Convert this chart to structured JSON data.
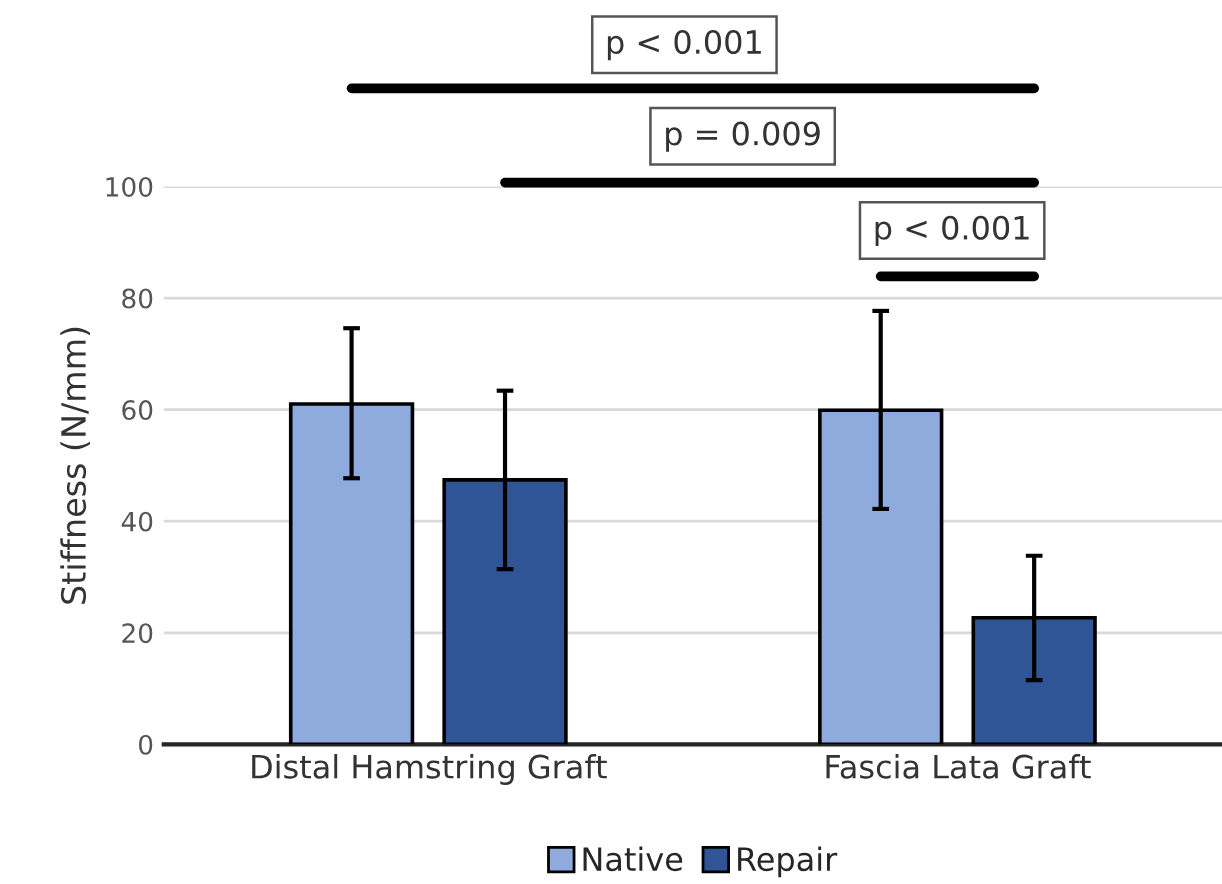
{
  "chart_data": {
    "type": "bar",
    "ylabel": "Stiffness (N/mm)",
    "categories": [
      "Distal Hamstring Graft",
      "Fascia Lata Graft"
    ],
    "series": [
      {
        "name": "Native",
        "color": "#8faadc",
        "values": [
          61.0,
          59.9
        ],
        "errors": [
          [
            47.7,
            74.6
          ],
          [
            42.2,
            77.7
          ]
        ]
      },
      {
        "name": "Repair",
        "color": "#2f5597",
        "values": [
          47.4,
          22.7
        ],
        "errors": [
          [
            31.4,
            63.4
          ],
          [
            11.5,
            33.8
          ]
        ]
      }
    ],
    "ylim": [
      0,
      100
    ],
    "yticks": [
      0,
      20,
      40,
      60,
      80,
      100
    ],
    "grid": "y",
    "legend": "bottom",
    "annotations": [
      "p < 0.001",
      "p = 0.009",
      "p < 0.001"
    ]
  }
}
